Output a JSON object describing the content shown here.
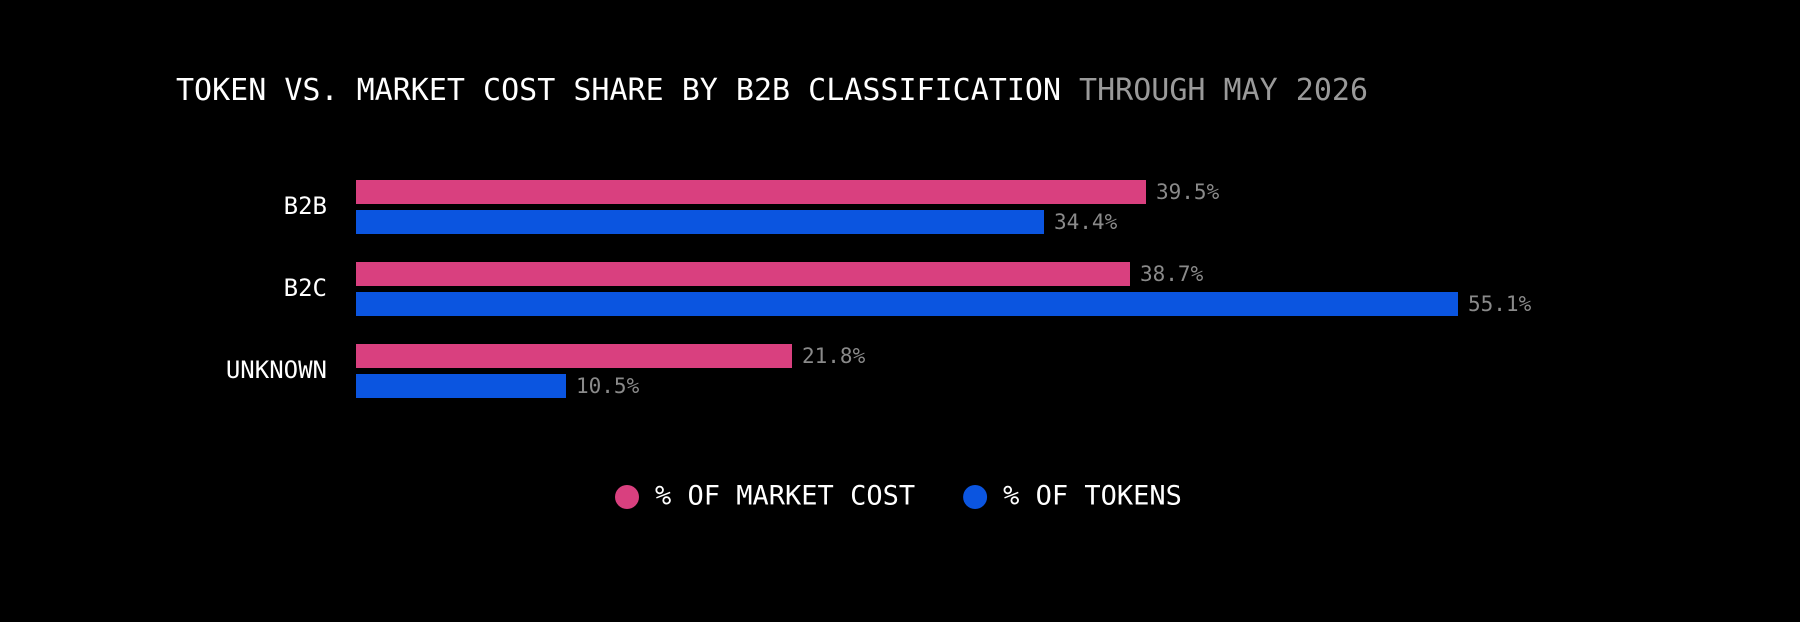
{
  "chart_data": {
    "type": "hbar",
    "title": "TOKEN VS. MARKET COST SHARE BY B2B CLASSIFICATION",
    "subtitle": "THROUGH MAY 2026",
    "categories": [
      "B2B",
      "B2C",
      "UNKNOWN"
    ],
    "series": [
      {
        "name": "% OF MARKET COST",
        "color": "#d9407f",
        "values": [
          39.5,
          38.7,
          21.8
        ],
        "value_labels": [
          "39.5%",
          "38.7%",
          "21.8%"
        ]
      },
      {
        "name": "% OF TOKENS",
        "color": "#0b55e0",
        "values": [
          34.4,
          55.1,
          10.5
        ],
        "value_labels": [
          "34.4%",
          "55.1%",
          "10.5%"
        ]
      }
    ],
    "legend": "bottom"
  }
}
